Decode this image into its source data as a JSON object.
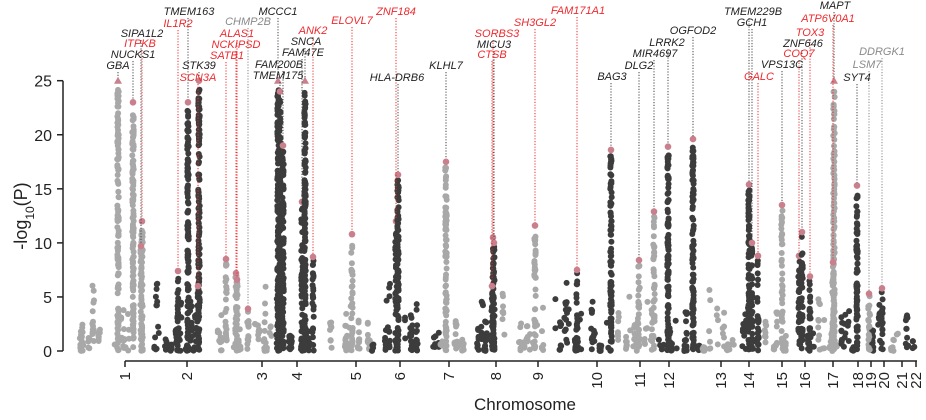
{
  "chart_data": {
    "type": "scatter",
    "subtype": "manhattan",
    "xlabel": "Chromosome",
    "ylabel_parts": [
      "-log",
      "10",
      "(P)"
    ],
    "ylim": [
      0,
      25
    ],
    "yticks": [
      "0",
      "5",
      "10",
      "15",
      "20",
      "25"
    ],
    "chromosomes": [
      "1",
      "2",
      "3",
      "4",
      "5",
      "6",
      "7",
      "8",
      "9",
      "10",
      "11",
      "12",
      "13",
      "14",
      "15",
      "16",
      "17",
      "18",
      "19",
      "20",
      "21",
      "22"
    ],
    "grid": false,
    "colors": {
      "odd_chromosome_points": "#a8a8a8",
      "even_chromosome_points": "#3c3c3c",
      "lead_snp": "#c9808c",
      "label_red": "#ee2a2e",
      "label_black": "#222222",
      "label_gray": "#8a8a8a"
    },
    "loci": [
      {
        "gene": "GBA",
        "chr": "1",
        "peak": 25,
        "capped": true,
        "color": "#222222"
      },
      {
        "gene": "NUCKS1",
        "chr": "1",
        "peak": 23,
        "capped": false,
        "color": "#222222"
      },
      {
        "gene": "ITPKB",
        "chr": "1",
        "peak": 12,
        "capped": false,
        "color": "#ee2a2e"
      },
      {
        "gene": "SIPA1L2",
        "chr": "1",
        "peak": 9.7,
        "capped": false,
        "color": "#222222"
      },
      {
        "gene": "IL1R2",
        "chr": "2",
        "peak": 7.4,
        "capped": false,
        "color": "#ee2a2e"
      },
      {
        "gene": "TMEM163",
        "chr": "2",
        "peak": 23,
        "capped": false,
        "color": "#222222"
      },
      {
        "gene": "STK39",
        "chr": "2",
        "peak": 25,
        "capped": false,
        "color": "#222222"
      },
      {
        "gene": "SCN3A",
        "chr": "2",
        "peak": 6,
        "capped": false,
        "color": "#ee2a2e"
      },
      {
        "gene": "SATB1",
        "chr": "3",
        "peak": 8.5,
        "capped": false,
        "color": "#ee2a2e"
      },
      {
        "gene": "NCKIPSD",
        "chr": "3",
        "peak": 7.2,
        "capped": false,
        "color": "#ee2a2e"
      },
      {
        "gene": "ALAS1",
        "chr": "3",
        "peak": 6.6,
        "capped": false,
        "color": "#ee2a2e"
      },
      {
        "gene": "CHMP2B",
        "chr": "3",
        "peak": 3.9,
        "capped": false,
        "color": "#8a8a8a"
      },
      {
        "gene": "MCCC1",
        "chr": "3",
        "peak": 25,
        "capped": true,
        "color": "#222222"
      },
      {
        "gene": "TMEM175",
        "chr": "4",
        "peak": 24,
        "capped": false,
        "color": "#222222"
      },
      {
        "gene": "FAM200B",
        "chr": "4",
        "peak": 19,
        "capped": false,
        "color": "#222222"
      },
      {
        "gene": "FAM47E",
        "chr": "4",
        "peak": 13.8,
        "capped": false,
        "color": "#222222"
      },
      {
        "gene": "SNCA",
        "chr": "4",
        "peak": 25,
        "capped": true,
        "color": "#222222"
      },
      {
        "gene": "ANK2",
        "chr": "4",
        "peak": 8.7,
        "capped": false,
        "color": "#ee2a2e"
      },
      {
        "gene": "ELOVL7",
        "chr": "5",
        "peak": 10.8,
        "capped": false,
        "color": "#ee2a2e"
      },
      {
        "gene": "ZNF184",
        "chr": "6",
        "peak": 12,
        "capped": false,
        "color": "#ee2a2e"
      },
      {
        "gene": "HLA-DRB6",
        "chr": "6",
        "peak": 16.3,
        "capped": false,
        "color": "#222222"
      },
      {
        "gene": "KLHL7",
        "chr": "7",
        "peak": 17.5,
        "capped": false,
        "color": "#222222"
      },
      {
        "gene": "SORBS3",
        "chr": "8",
        "peak": 10.5,
        "capped": false,
        "color": "#ee2a2e"
      },
      {
        "gene": "MICU3",
        "chr": "8",
        "peak": 10,
        "capped": false,
        "color": "#222222"
      },
      {
        "gene": "CTSB",
        "chr": "8",
        "peak": 6,
        "capped": false,
        "color": "#ee2a2e"
      },
      {
        "gene": "SH3GL2",
        "chr": "9",
        "peak": 11.6,
        "capped": false,
        "color": "#ee2a2e"
      },
      {
        "gene": "FAM171A1",
        "chr": "10",
        "peak": 7.5,
        "capped": false,
        "color": "#ee2a2e"
      },
      {
        "gene": "BAG3",
        "chr": "10",
        "peak": 18.6,
        "capped": false,
        "color": "#222222"
      },
      {
        "gene": "DLG2",
        "chr": "11",
        "peak": 8.4,
        "capped": false,
        "color": "#222222"
      },
      {
        "gene": "MIR4697",
        "chr": "11",
        "peak": 12.9,
        "capped": false,
        "color": "#222222"
      },
      {
        "gene": "LRRK2",
        "chr": "12",
        "peak": 18.9,
        "capped": false,
        "color": "#222222"
      },
      {
        "gene": "OGFOD2",
        "chr": "12",
        "peak": 19.6,
        "capped": false,
        "color": "#222222"
      },
      {
        "gene": "TMEM229B",
        "chr": "14",
        "peak": 15.4,
        "capped": false,
        "color": "#222222"
      },
      {
        "gene": "GCH1",
        "chr": "14",
        "peak": 10,
        "capped": false,
        "color": "#222222"
      },
      {
        "gene": "GALC",
        "chr": "14",
        "peak": 8.8,
        "capped": false,
        "color": "#ee2a2e"
      },
      {
        "gene": "VPS13C",
        "chr": "15",
        "peak": 13.5,
        "capped": false,
        "color": "#222222"
      },
      {
        "gene": "COQ7",
        "chr": "16",
        "peak": 8.8,
        "capped": false,
        "color": "#ee2a2e"
      },
      {
        "gene": "ZNF646",
        "chr": "16",
        "peak": 11,
        "capped": false,
        "color": "#222222"
      },
      {
        "gene": "TOX3",
        "chr": "16",
        "peak": 6.9,
        "capped": false,
        "color": "#ee2a2e"
      },
      {
        "gene": "MAPT",
        "chr": "17",
        "peak": 25,
        "capped": true,
        "color": "#222222"
      },
      {
        "gene": "ATP6V0A1",
        "chr": "17",
        "peak": 8.2,
        "capped": false,
        "color": "#ee2a2e"
      },
      {
        "gene": "SYT4",
        "chr": "18",
        "peak": 15.3,
        "capped": false,
        "color": "#222222"
      },
      {
        "gene": "LSM7",
        "chr": "19",
        "peak": 5.3,
        "capped": false,
        "color": "#8a8a8a"
      },
      {
        "gene": "DDRGK1",
        "chr": "20",
        "peak": 5.8,
        "capped": false,
        "color": "#8a8a8a"
      }
    ]
  }
}
